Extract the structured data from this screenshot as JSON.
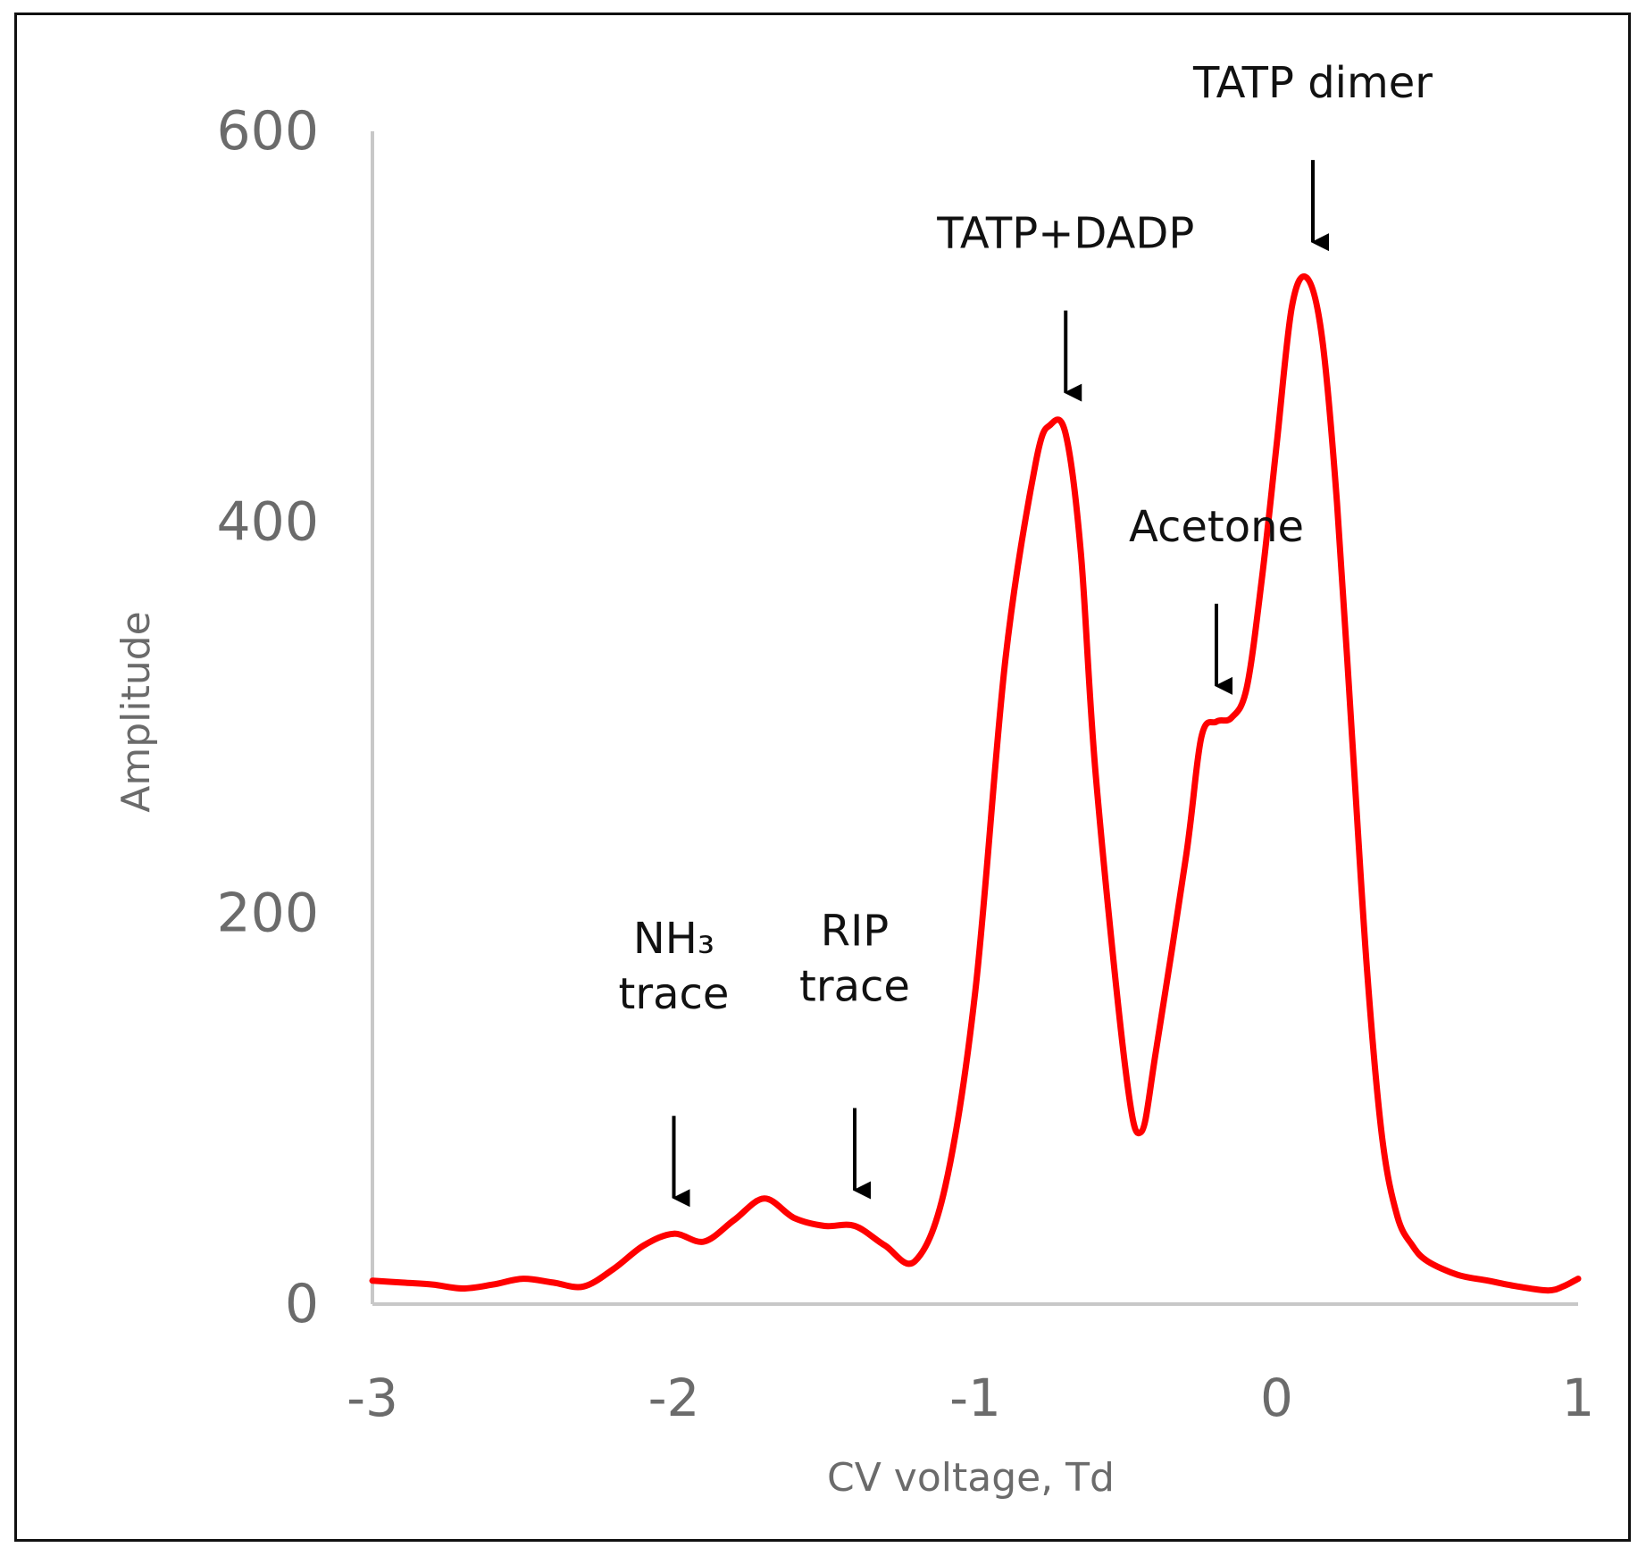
{
  "chart_data": {
    "type": "line",
    "title": "",
    "xlabel": "CV voltage, Td",
    "ylabel": "Amplitude",
    "xlim": [
      -3,
      1
    ],
    "ylim": [
      0,
      600
    ],
    "xticks": [
      -3,
      -2,
      -1,
      0,
      1
    ],
    "xtick_labels": [
      "-3",
      "-2",
      "-1",
      "0",
      "1"
    ],
    "yticks": [
      0,
      200,
      400,
      600
    ],
    "ytick_labels": [
      "0",
      "200",
      "400",
      "600"
    ],
    "grid": false,
    "colors": {
      "line": "#ff0000",
      "axis": "#c8c8c8",
      "arrow": "#000000"
    },
    "series": [
      {
        "name": "Amplitude",
        "x": [
          -3.0,
          -2.9,
          -2.8,
          -2.7,
          -2.6,
          -2.5,
          -2.4,
          -2.3,
          -2.2,
          -2.1,
          -2.0,
          -1.9,
          -1.8,
          -1.7,
          -1.6,
          -1.5,
          -1.4,
          -1.3,
          -1.2,
          -1.1,
          -1.0,
          -0.9,
          -0.8,
          -0.75,
          -0.7,
          -0.65,
          -0.6,
          -0.5,
          -0.45,
          -0.4,
          -0.3,
          -0.25,
          -0.2,
          -0.15,
          -0.1,
          -0.05,
          0.0,
          0.05,
          0.1,
          0.15,
          0.2,
          0.25,
          0.3,
          0.35,
          0.4,
          0.45,
          0.5,
          0.6,
          0.7,
          0.8,
          0.9,
          0.95,
          1.0
        ],
        "y": [
          12,
          11,
          10,
          8,
          10,
          13,
          11,
          9,
          18,
          30,
          36,
          32,
          43,
          54,
          44,
          40,
          40,
          30,
          22,
          60,
          160,
          330,
          430,
          450,
          445,
          385,
          270,
          118,
          88,
          130,
          230,
          290,
          298,
          300,
          315,
          370,
          440,
          510,
          525,
          495,
          410,
          290,
          170,
          85,
          45,
          30,
          22,
          15,
          12,
          9,
          7,
          9,
          13
        ]
      }
    ],
    "annotations": [
      {
        "label": "NH₃",
        "label2": "trace",
        "x": -2.0,
        "y": 36
      },
      {
        "label": "RIP",
        "label2": "trace",
        "x": -1.4,
        "y": 40
      },
      {
        "label": "TATP+DADP",
        "label2": "",
        "x": -0.7,
        "y": 448
      },
      {
        "label": "Acetone",
        "label2": "",
        "x": -0.2,
        "y": 298
      },
      {
        "label": "TATP dimer",
        "label2": "",
        "x": 0.12,
        "y": 525
      }
    ]
  }
}
